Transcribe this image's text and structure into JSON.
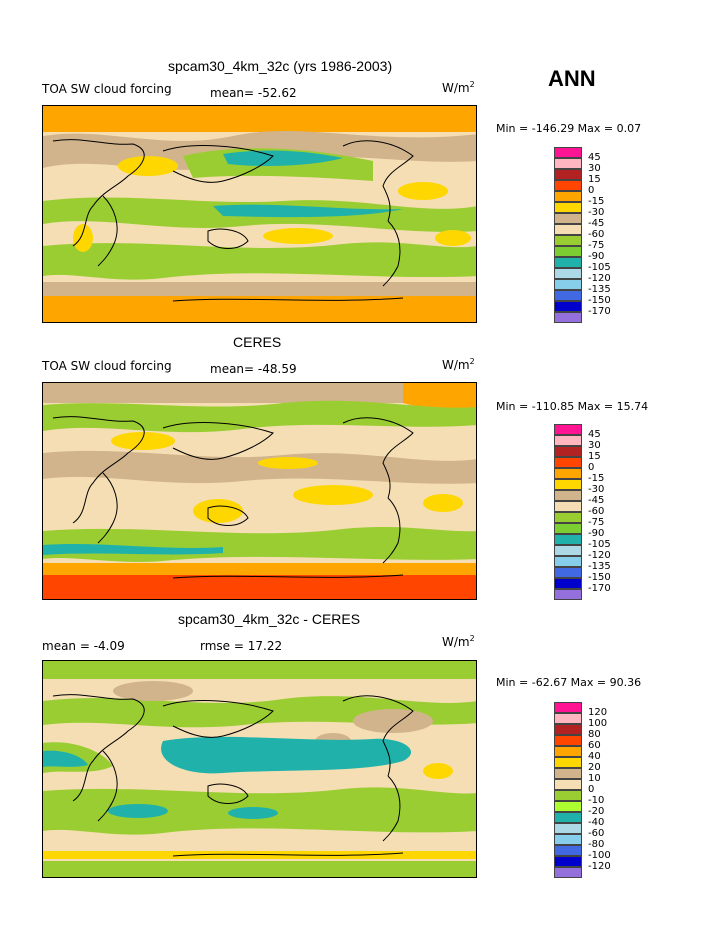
{
  "season": "ANN",
  "panels": [
    {
      "title": "spcam30_4km_32c (yrs 1986-2003)",
      "field_label": "TOA SW cloud forcing",
      "mean_label": "mean= -52.62",
      "rmse_label": "",
      "units_base": "W/m",
      "units_exp": "2",
      "minmax_label": "Min = -146.29 Max =    0.07",
      "levels": [
        "45",
        "30",
        "15",
        "0",
        "-15",
        "-30",
        "-45",
        "-60",
        "-75",
        "-90",
        "-105",
        "-120",
        "-135",
        "-150",
        "-170"
      ],
      "colors": [
        "#ff1493",
        "#ffb6c1",
        "#b22222",
        "#ff4500",
        "#ffa500",
        "#ffd700",
        "#d2b48c",
        "#f5deb3",
        "#9acd32",
        "#7ccd32",
        "#20b2aa",
        "#add8e6",
        "#87ceeb",
        "#4169e1",
        "#0000cd",
        "#9370db"
      ]
    },
    {
      "title": "CERES",
      "field_label": "TOA SW cloud forcing",
      "mean_label": "mean= -48.59",
      "rmse_label": "",
      "units_base": "W/m",
      "units_exp": "2",
      "minmax_label": "Min = -110.85 Max =  15.74",
      "levels": [
        "45",
        "30",
        "15",
        "0",
        "-15",
        "-30",
        "-45",
        "-60",
        "-75",
        "-90",
        "-105",
        "-120",
        "-135",
        "-150",
        "-170"
      ],
      "colors": [
        "#ff1493",
        "#ffb6c1",
        "#b22222",
        "#ff4500",
        "#ffa500",
        "#ffd700",
        "#d2b48c",
        "#f5deb3",
        "#9acd32",
        "#7ccd32",
        "#20b2aa",
        "#add8e6",
        "#87ceeb",
        "#4169e1",
        "#0000cd",
        "#9370db"
      ]
    },
    {
      "title": "spcam30_4km_32c - CERES",
      "field_label": "mean =   -4.09",
      "mean_label": "",
      "rmse_label": "rmse =  17.22",
      "units_base": "W/m",
      "units_exp": "2",
      "minmax_label": "Min = -62.67 Max =  90.36",
      "levels": [
        "120",
        "100",
        "80",
        "60",
        "40",
        "20",
        "10",
        "0",
        "-10",
        "-20",
        "-40",
        "-60",
        "-80",
        "-100",
        "-120"
      ],
      "colors": [
        "#ff1493",
        "#ffb6c1",
        "#b22222",
        "#ff4500",
        "#ffa500",
        "#ffd700",
        "#d2b48c",
        "#f5deb3",
        "#9acd32",
        "#adff2f",
        "#20b2aa",
        "#add8e6",
        "#87ceeb",
        "#4169e1",
        "#0000cd",
        "#9370db"
      ]
    }
  ]
}
